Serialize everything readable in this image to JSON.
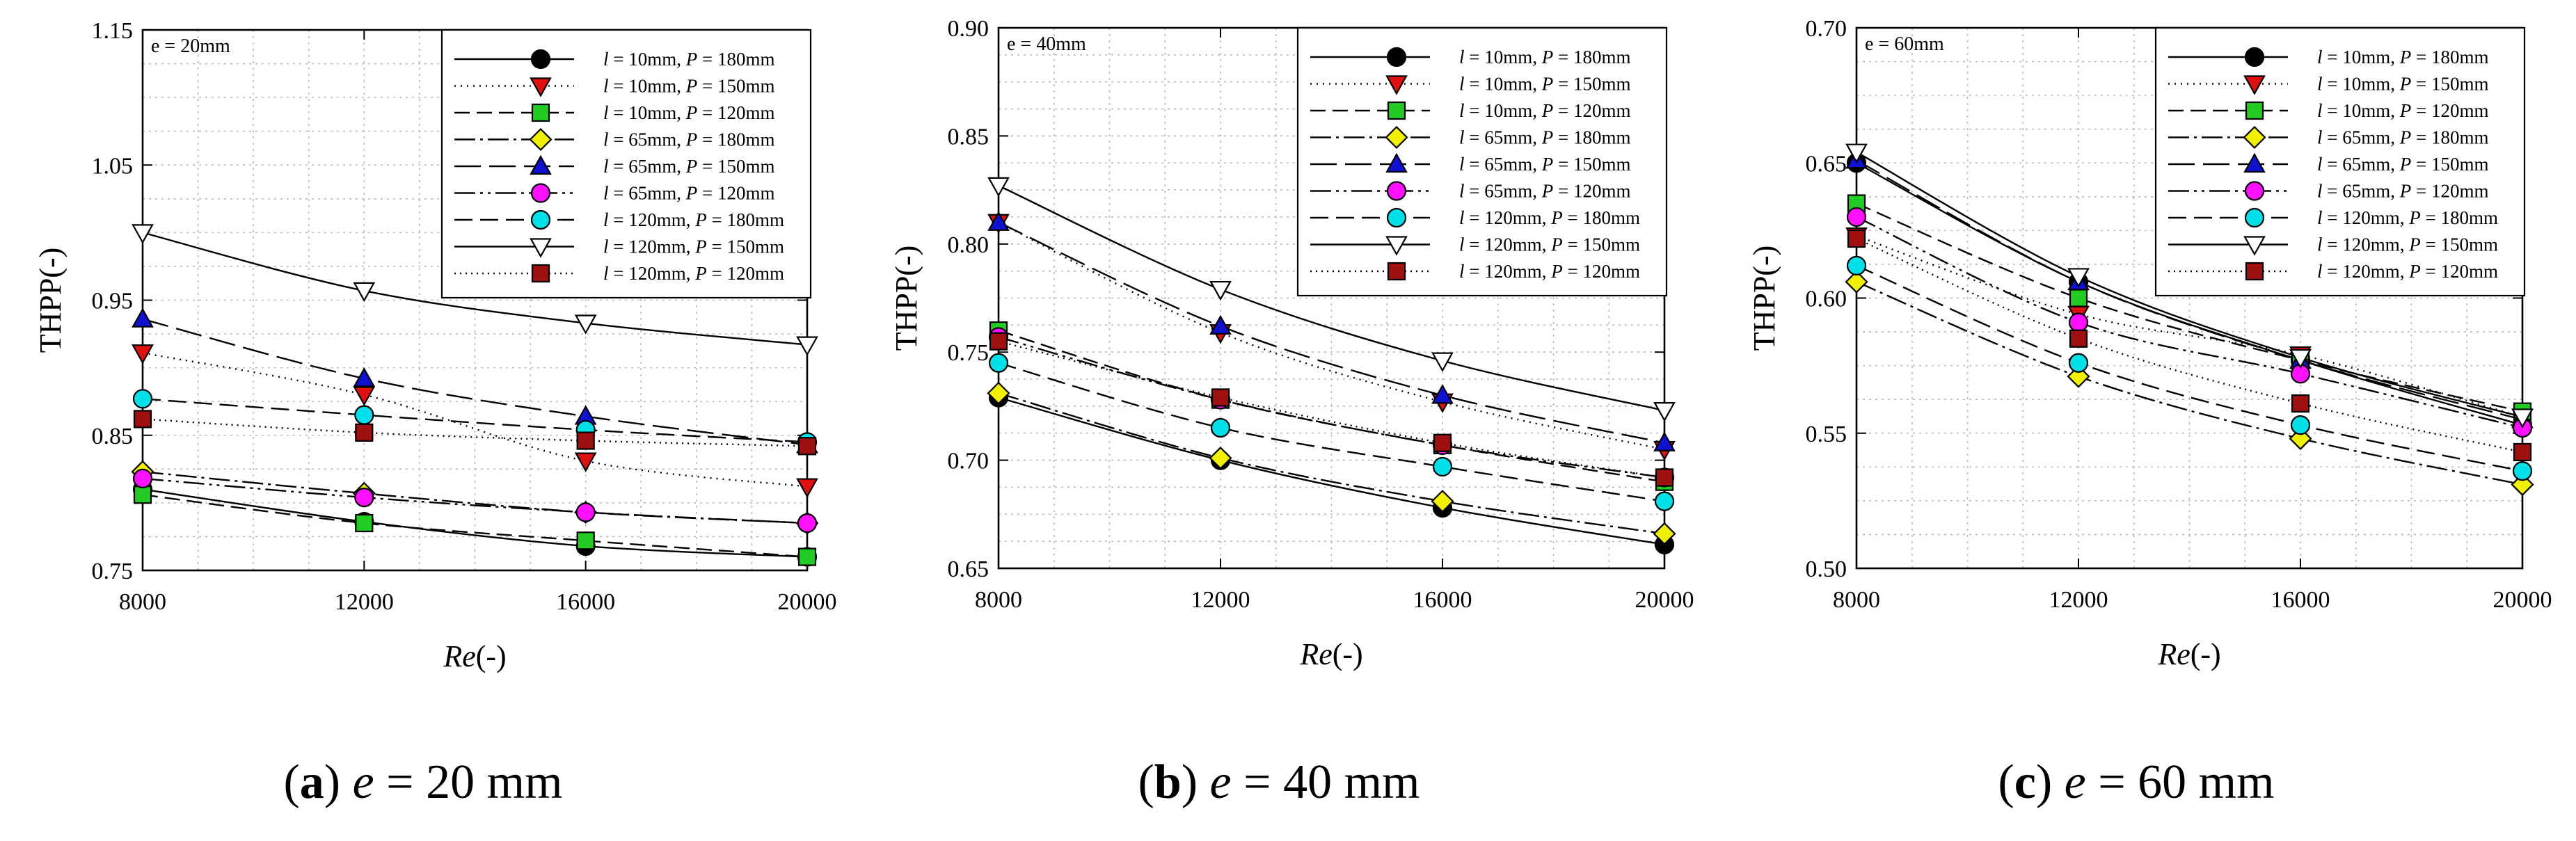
{
  "chart_data": [
    {
      "type": "line",
      "title": "e = 20mm",
      "xlabel": "Re(-)",
      "ylabel": "THPP(-)",
      "xlim": [
        8000,
        20000
      ],
      "ylim": [
        0.75,
        1.15
      ],
      "x": [
        8000,
        12000,
        16000,
        20000
      ],
      "x_ticks": [
        "8000",
        "12000",
        "16000",
        "20000"
      ],
      "y_ticks": [
        "0.75",
        "0.85",
        "0.95",
        "1.05",
        "1.15"
      ],
      "grid": true,
      "legend": "top-right",
      "series": [
        {
          "name": "l = 10mm, P = 180mm",
          "values": [
            0.81,
            0.786,
            0.768,
            0.76
          ]
        },
        {
          "name": "l = 10mm, P = 150mm",
          "values": [
            0.911,
            0.88,
            0.831,
            0.812
          ]
        },
        {
          "name": "l = 10mm, P = 120mm",
          "values": [
            0.806,
            0.785,
            0.772,
            0.76
          ]
        },
        {
          "name": "l = 65mm, P = 180mm",
          "values": [
            0.823,
            0.807,
            0.793,
            0.785
          ]
        },
        {
          "name": "l = 65mm, P = 150mm",
          "values": [
            0.936,
            0.892,
            0.864,
            0.843
          ]
        },
        {
          "name": "l = 65mm, P = 120mm",
          "values": [
            0.818,
            0.804,
            0.793,
            0.785
          ]
        },
        {
          "name": "l = 120mm, P = 180mm",
          "values": [
            0.877,
            0.865,
            0.854,
            0.845
          ]
        },
        {
          "name": "l = 120mm, P = 150mm",
          "values": [
            1.0,
            0.957,
            0.933,
            0.917
          ]
        },
        {
          "name": "l = 120mm, P = 120mm",
          "values": [
            0.862,
            0.852,
            0.846,
            0.842
          ]
        }
      ]
    },
    {
      "type": "line",
      "title": "e = 40mm",
      "xlabel": "Re(-)",
      "ylabel": "THPP(-)",
      "xlim": [
        8000,
        20000
      ],
      "ylim": [
        0.65,
        0.9
      ],
      "x": [
        8000,
        12000,
        16000,
        20000
      ],
      "x_ticks": [
        "8000",
        "12000",
        "16000",
        "20000"
      ],
      "y_ticks": [
        "0.65",
        "0.70",
        "0.75",
        "0.80",
        "0.85",
        "0.90"
      ],
      "grid": true,
      "legend": "top-right",
      "series": [
        {
          "name": "l = 10mm, P = 180mm",
          "values": [
            0.729,
            0.7,
            0.678,
            0.661
          ]
        },
        {
          "name": "l = 10mm, P = 150mm",
          "values": [
            0.81,
            0.759,
            0.727,
            0.705
          ]
        },
        {
          "name": "l = 10mm, P = 120mm",
          "values": [
            0.76,
            0.728,
            0.707,
            0.69
          ]
        },
        {
          "name": "l = 65mm, P = 180mm",
          "values": [
            0.731,
            0.701,
            0.681,
            0.666
          ]
        },
        {
          "name": "l = 65mm, P = 150mm",
          "values": [
            0.81,
            0.762,
            0.73,
            0.708
          ]
        },
        {
          "name": "l = 65mm, P = 120mm",
          "values": [
            0.757,
            0.728,
            0.707,
            0.692
          ]
        },
        {
          "name": "l = 120mm, P = 180mm",
          "values": [
            0.745,
            0.715,
            0.697,
            0.681
          ]
        },
        {
          "name": "l = 120mm, P = 150mm",
          "values": [
            0.827,
            0.779,
            0.746,
            0.723
          ]
        },
        {
          "name": "l = 120mm, P = 120mm",
          "values": [
            0.755,
            0.729,
            0.708,
            0.692
          ]
        }
      ]
    },
    {
      "type": "line",
      "title": "e = 60mm",
      "xlabel": "Re(-)",
      "ylabel": "THPP(-)",
      "xlim": [
        8000,
        20000
      ],
      "ylim": [
        0.5,
        0.7
      ],
      "x": [
        8000,
        12000,
        16000,
        20000
      ],
      "x_ticks": [
        "8000",
        "12000",
        "16000",
        "20000"
      ],
      "y_ticks": [
        "0.50",
        "0.55",
        "0.60",
        "0.65",
        "0.70"
      ],
      "grid": true,
      "legend": "top-right",
      "series": [
        {
          "name": "l = 10mm, P = 180mm",
          "values": [
            0.65,
            0.606,
            0.577,
            0.553
          ]
        },
        {
          "name": "l = 10mm, P = 150mm",
          "values": [
            0.623,
            0.594,
            0.579,
            0.556
          ]
        },
        {
          "name": "l = 10mm, P = 120mm",
          "values": [
            0.635,
            0.6,
            0.577,
            0.558
          ]
        },
        {
          "name": "l = 65mm, P = 180mm",
          "values": [
            0.606,
            0.571,
            0.548,
            0.531
          ]
        },
        {
          "name": "l = 65mm, P = 150mm",
          "values": [
            0.651,
            0.606,
            0.577,
            0.555
          ]
        },
        {
          "name": "l = 65mm, P = 120mm",
          "values": [
            0.63,
            0.591,
            0.572,
            0.552
          ]
        },
        {
          "name": "l = 120mm, P = 180mm",
          "values": [
            0.612,
            0.576,
            0.553,
            0.536
          ]
        },
        {
          "name": "l = 120mm, P = 150mm",
          "values": [
            0.654,
            0.608,
            0.578,
            0.556
          ]
        },
        {
          "name": "l = 120mm, P = 120mm",
          "values": [
            0.622,
            0.585,
            0.561,
            0.543
          ]
        }
      ]
    }
  ],
  "legend_style": [
    {
      "marker": "circle",
      "color": "#000000",
      "dash": ""
    },
    {
      "marker": "triangle-down",
      "color": "#e01010",
      "dash": "2,7"
    },
    {
      "marker": "square",
      "color": "#22cc22",
      "dash": "22,10"
    },
    {
      "marker": "diamond",
      "color": "#f0f000",
      "dash": "30,7,4,7"
    },
    {
      "marker": "triangle-up",
      "color": "#1010d0",
      "dash": "38,12"
    },
    {
      "marker": "circle",
      "color": "#ff10ff",
      "dash": "30,7,4,7,4,7"
    },
    {
      "marker": "circle",
      "color": "#00e0e8",
      "dash": "26,11"
    },
    {
      "marker": "triangle-down",
      "color": "#ffffff",
      "dash": ""
    },
    {
      "marker": "square",
      "color": "#a01010",
      "dash": "2,6"
    }
  ],
  "captions": [
    {
      "letter": "a",
      "var": "e",
      "rest": " = 20 mm"
    },
    {
      "letter": "b",
      "var": "e",
      "rest": " = 40 mm"
    },
    {
      "letter": "c",
      "var": "e",
      "rest": " = 60 mm"
    }
  ]
}
